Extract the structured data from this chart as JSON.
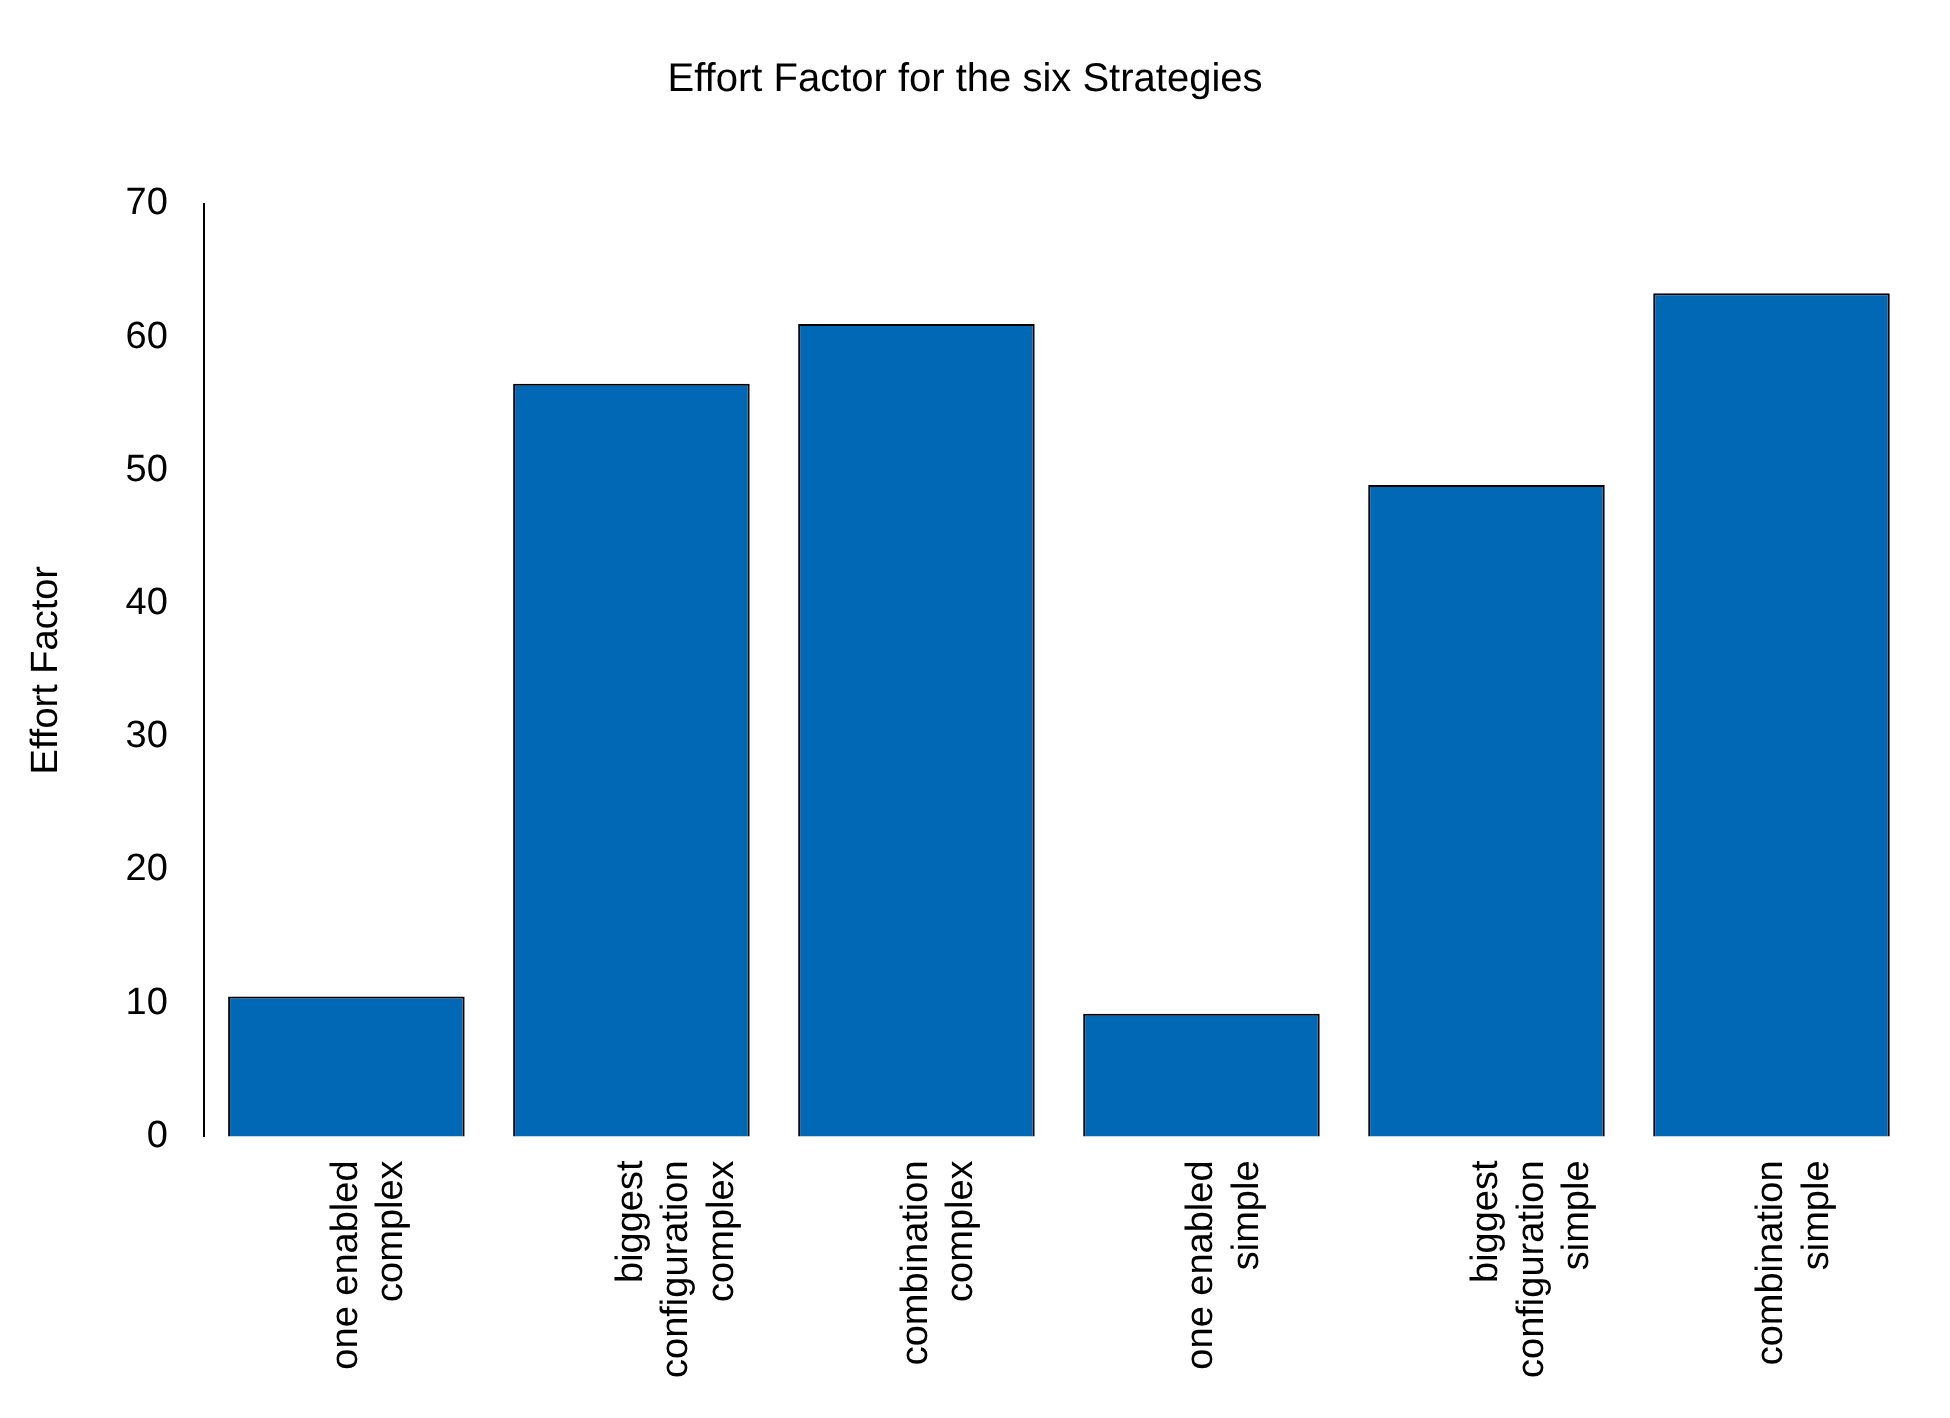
{
  "chart_data": {
    "type": "bar",
    "title": "Effort Factor for the six Strategies",
    "ylabel": "Effort Factor",
    "categories": [
      "one enabled\ncomplex",
      "biggest\nconfiguration\ncomplex",
      "combination\ncomplex",
      "one enabled\nsimple",
      "biggest\nconfiguration\nsimple",
      "combination\nsimple"
    ],
    "values": [
      10.5,
      56.5,
      61,
      9.2,
      48.9,
      63.3
    ],
    "color": "#0068b4",
    "ylim": [
      0,
      70
    ],
    "yticks": [
      0,
      10,
      20,
      30,
      40,
      50,
      60,
      70
    ],
    "grid": false,
    "legend": false
  }
}
